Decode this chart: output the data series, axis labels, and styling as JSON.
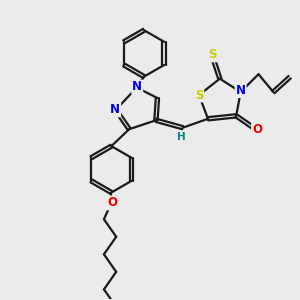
{
  "bg_color": "#ebebeb",
  "bond_color": "#1a1a1a",
  "bond_width": 1.6,
  "atom_colors": {
    "N": "#0000ee",
    "O": "#ee0000",
    "S": "#cccc00",
    "H": "#008888",
    "C": "#1a1a1a"
  },
  "font_size_atom": 8.5,
  "font_size_H": 7.5,
  "scale": 1.0
}
